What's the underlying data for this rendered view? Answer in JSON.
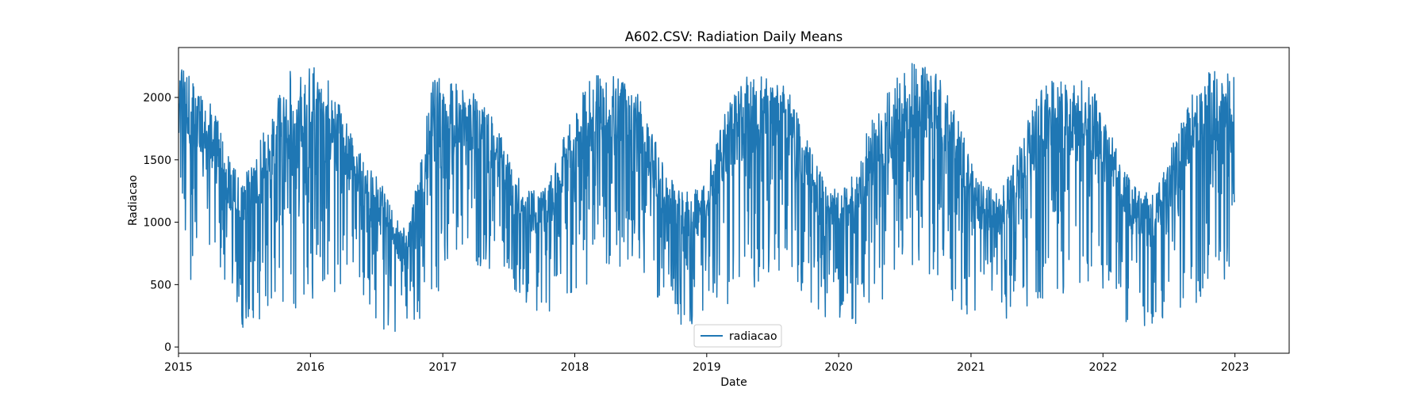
{
  "chart_data": {
    "type": "line",
    "title": "A602.CSV: Radiation Daily Means",
    "xlabel": "Date",
    "ylabel": "Radiacao",
    "x_ticks": [
      "2015",
      "2016",
      "2017",
      "2018",
      "2019",
      "2020",
      "2021",
      "2022",
      "2023"
    ],
    "y_ticks": [
      "0",
      "500",
      "1000",
      "1500",
      "2000"
    ],
    "xlim": [
      "2015-01-01",
      "2023-05-31"
    ],
    "ylim": [
      -50,
      2400
    ],
    "grid": false,
    "legend_position": "lower center",
    "series": [
      {
        "name": "radiacao",
        "color": "#1f77b4",
        "x_start": "2015-01-01",
        "x_end": "2022-12-31",
        "x_frequency": "daily",
        "values_note": "dense daily series; envelope below sampled monthly",
        "upper_envelope": [
          2300,
          2200,
          2050,
          1850,
          1500,
          1350,
          1500,
          1850,
          2100,
          2250,
          2300,
          2250,
          2100,
          1850,
          1600,
          1450,
          1300,
          1100,
          900,
          1500,
          2200,
          2150,
          2100,
          2050,
          2000,
          1800,
          1500,
          1300,
          1250,
          1300,
          1600,
          1900,
          2100,
          2200,
          2180,
          2150,
          2050,
          1800,
          1500,
          1300,
          1250,
          1300,
          1600,
          1900,
          2100,
          2200,
          2180,
          2150,
          2050,
          1800,
          1500,
          1300,
          1250,
          1400,
          1700,
          1950,
          2100,
          2250,
          2300,
          2250,
          2150,
          1900,
          1600,
          1350,
          1300,
          1300,
          1600,
          1900,
          2100,
          2150,
          2100,
          2150,
          2050,
          1800,
          1500,
          1300,
          1250,
          1300,
          1600,
          1900,
          2100,
          2200,
          2250,
          2200
        ],
        "lower_envelope": [
          1400,
          300,
          650,
          500,
          250,
          150,
          200,
          250,
          300,
          250,
          350,
          400,
          350,
          500,
          600,
          200,
          150,
          100,
          80,
          150,
          400,
          500,
          700,
          650,
          600,
          550,
          500,
          300,
          250,
          200,
          300,
          350,
          400,
          500,
          600,
          650,
          700,
          500,
          300,
          200,
          150,
          200,
          250,
          300,
          400,
          450,
          500,
          600,
          550,
          400,
          300,
          200,
          150,
          150,
          250,
          300,
          350,
          400,
          500,
          550,
          450,
          350,
          250,
          200,
          150,
          150,
          250,
          300,
          400,
          350,
          450,
          500,
          400,
          300,
          200,
          150,
          150,
          200,
          250,
          300,
          350,
          400,
          450,
          500
        ]
      }
    ]
  }
}
